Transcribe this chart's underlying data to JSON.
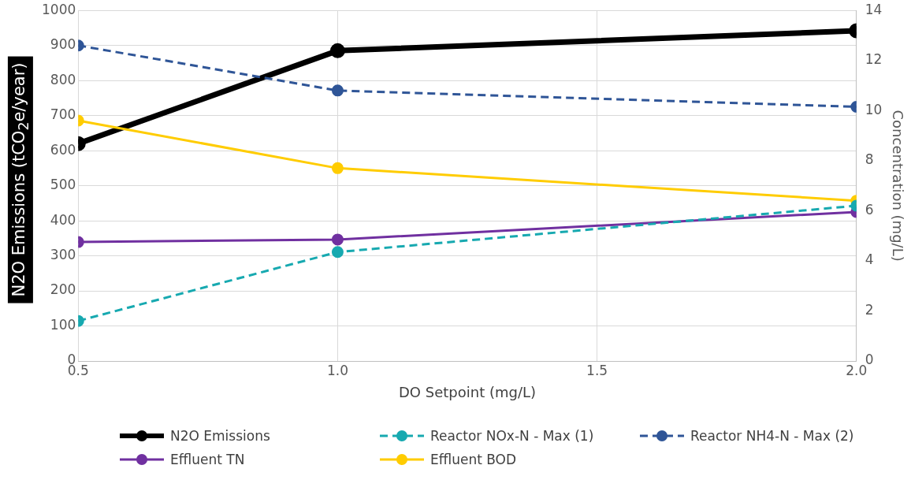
{
  "chart_data": {
    "type": "line",
    "xlabel": "DO Setpoint (mg/L)",
    "ylabel": "N2O Emissions (tCO$_{2}$e/year)",
    "y2label": "Concentration (mg/L)",
    "x": [
      0.5,
      1.0,
      2.0
    ],
    "xlim": [
      0.5,
      2.0
    ],
    "xticks": [
      {
        "value": 0.5,
        "label": "0.5"
      },
      {
        "value": 1.0,
        "label": "1.0"
      },
      {
        "value": 1.5,
        "label": "1.5"
      },
      {
        "value": 2.0,
        "label": "2.0"
      }
    ],
    "ylim": [
      0,
      1000
    ],
    "yticks": [
      0,
      100,
      200,
      300,
      400,
      500,
      600,
      700,
      800,
      900,
      1000
    ],
    "y2lim": [
      0,
      14
    ],
    "y2ticks": [
      0,
      2,
      4,
      6,
      8,
      10,
      12,
      14
    ],
    "grid": true,
    "legend": "bottom",
    "marker": "circle",
    "series": [
      {
        "name": "N2O Emissions",
        "color": "#000000",
        "values": [
          620,
          885,
          942
        ],
        "line_style": "solid"
      },
      {
        "name": "Reactor NOx-N - Max (1)",
        "color": "#17a9b0",
        "values": [
          1.6,
          4.35,
          6.2
        ],
        "axis": "y2",
        "line_style": "dashed"
      },
      {
        "name": "Reactor NH4-N - Max (2)",
        "color": "#2f5597",
        "values": [
          12.6,
          10.8,
          10.15
        ],
        "axis": "y2",
        "line_style": "dashed"
      },
      {
        "name": "Effluent TN",
        "color": "#7030a0",
        "values": [
          4.75,
          4.85,
          5.95
        ],
        "axis": "y2",
        "line_style": "solid"
      },
      {
        "name": "Effluent BOD",
        "color": "#ffcc00",
        "values": [
          9.6,
          7.7,
          6.4
        ],
        "axis": "y2",
        "line_style": "solid"
      }
    ]
  }
}
